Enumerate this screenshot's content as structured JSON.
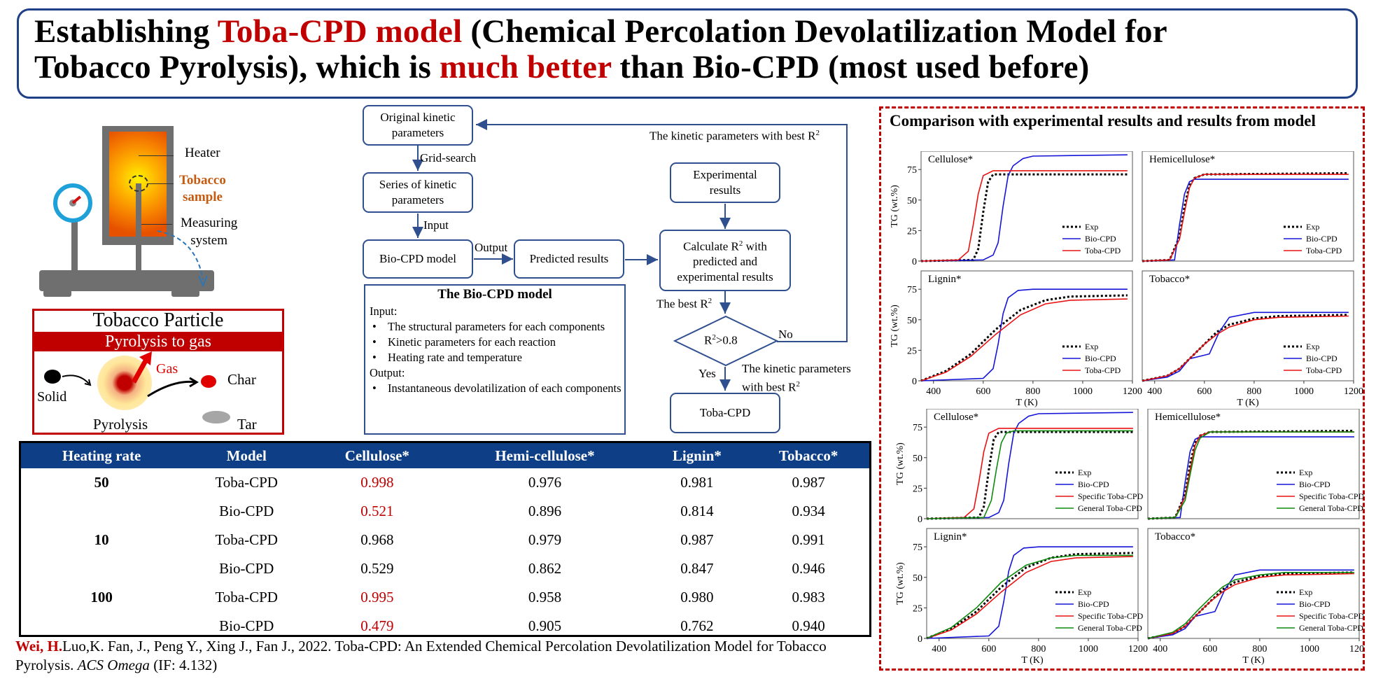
{
  "title": {
    "line1_a": "Establishing ",
    "line1_b": "Toba-CPD model",
    "line1_c": " (Chemical Percolation Devolatilization Model for",
    "line2_a": "Tobacco Pyrolysis), which is ",
    "line2_b": "much better",
    "line2_c": " than Bio-CPD (most used before)"
  },
  "apparatus": {
    "heater": "Heater",
    "sample_line1": "Tobacco",
    "sample_line2": "sample",
    "measuring_line1": "Measuring",
    "measuring_line2": "system"
  },
  "particle": {
    "title": "Tobacco Particle",
    "banner": "Pyrolysis to gas",
    "gas": "Gas",
    "char": "Char",
    "solid": "Solid",
    "pyrolysis": "Pyrolysis",
    "tar": "Tar"
  },
  "flowchart": {
    "original_params_l1": "Original kinetic",
    "original_params_l2": "parameters",
    "grid_search": "Grid-search",
    "series_l1": "Series of kinetic",
    "series_l2": "parameters",
    "input": "Input",
    "bio_cpd_model": "Bio-CPD model",
    "output": "Output",
    "predicted": "Predicted results",
    "experimental_l1": "Experimental",
    "experimental_l2": "results",
    "calc_l1": "Calculate R",
    "calc_l1_suffix": " with",
    "calc_l2": "predicted and",
    "calc_l3": "experimental results",
    "best_r2": "The best R",
    "decision": "R",
    "decision_suffix": ">0.8",
    "no": "No",
    "yes": "Yes",
    "best_params_top": "The kinetic parameters with best R",
    "best_params_l1": "The kinetic parameters",
    "best_params_l2": "with best R",
    "toba_cpd": "Toba-CPD",
    "superscript": "2"
  },
  "bio_cpd_box": {
    "heading": "The Bio-CPD model",
    "input_label": "Input:",
    "input_items": [
      "The structural parameters for each components",
      "Kinetic parameters for each reaction",
      "Heating rate and temperature"
    ],
    "output_label": "Output:",
    "output_items": [
      "Instantaneous devolatilization of each components"
    ]
  },
  "table": {
    "headers": [
      "Heating rate",
      "Model",
      "Cellulose*",
      "Hemi-cellulose*",
      "Lignin*",
      "Tobacco*"
    ],
    "rows": [
      [
        "50",
        "Toba-CPD",
        "0.998",
        "0.976",
        "0.981",
        "0.987"
      ],
      [
        "",
        "Bio-CPD",
        "0.521",
        "0.896",
        "0.814",
        "0.934"
      ],
      [
        "10",
        "Toba-CPD",
        "0.968",
        "0.979",
        "0.987",
        "0.991"
      ],
      [
        "",
        "Bio-CPD",
        "0.529",
        "0.862",
        "0.847",
        "0.946"
      ],
      [
        "100",
        "Toba-CPD",
        "0.995",
        "0.958",
        "0.980",
        "0.983"
      ],
      [
        "",
        "Bio-CPD",
        "0.479",
        "0.905",
        "0.762",
        "0.940"
      ]
    ]
  },
  "reference": {
    "author_bold": "Wei, H.",
    "rest": "Luo,K. Fan, J., Peng Y., Xing J., Fan J., 2022. Toba-CPD: An Extended Chemical Percolation Devolatilization Model for Tobacco Pyrolysis. ",
    "journal": "ACS Omega",
    "impact": " (IF: 4.132)"
  },
  "right_panel": {
    "title": "Comparison with experimental results and results from model"
  },
  "colors": {
    "navy": "#1f3f86",
    "red": "#c00000",
    "table_header": "#0e3f86",
    "bio": "#1515d8",
    "toba": "#e81212",
    "general": "#0f8a0f"
  },
  "chart_data": [
    {
      "type": "line",
      "panel": "top",
      "xlabel": "T (K)",
      "ylabel": "TG (wt.%)",
      "xlim": [
        350,
        1200
      ],
      "ylim": [
        0,
        90
      ],
      "xticks": [
        400,
        600,
        800,
        1000,
        1200
      ],
      "yticks": [
        0,
        25,
        50,
        75
      ],
      "legend": [
        "Exp",
        "Bio-CPD",
        "Toba-CPD"
      ],
      "subplots": [
        {
          "name": "Cellulose*",
          "series": [
            {
              "name": "Exp",
              "x": [
                350,
                560,
                580,
                600,
                620,
                640,
                660,
                1180
              ],
              "y": [
                0,
                1,
                10,
                40,
                65,
                71,
                71,
                71
              ]
            },
            {
              "name": "Bio-CPD",
              "x": [
                350,
                600,
                640,
                660,
                680,
                700,
                720,
                760,
                800,
                1180
              ],
              "y": [
                0,
                1,
                5,
                15,
                45,
                70,
                78,
                84,
                86,
                87
              ]
            },
            {
              "name": "Toba-CPD",
              "x": [
                350,
                500,
                540,
                560,
                580,
                600,
                640,
                1180
              ],
              "y": [
                0,
                1,
                8,
                30,
                55,
                70,
                74,
                74
              ]
            }
          ]
        },
        {
          "name": "Hemicellulose*",
          "series": [
            {
              "name": "Exp",
              "x": [
                350,
                460,
                500,
                520,
                540,
                560,
                600,
                1180
              ],
              "y": [
                0,
                1,
                20,
                45,
                62,
                68,
                71,
                72
              ]
            },
            {
              "name": "Bio-CPD",
              "x": [
                350,
                480,
                500,
                520,
                540,
                560,
                600,
                1180
              ],
              "y": [
                0,
                1,
                30,
                55,
                65,
                67,
                67,
                67
              ]
            },
            {
              "name": "Toba-CPD",
              "x": [
                350,
                460,
                500,
                520,
                540,
                560,
                600,
                1180
              ],
              "y": [
                0,
                1,
                18,
                40,
                60,
                68,
                71,
                71
              ]
            }
          ]
        },
        {
          "name": "Lignin*",
          "series": [
            {
              "name": "Exp",
              "x": [
                350,
                450,
                550,
                650,
                750,
                850,
                950,
                1180
              ],
              "y": [
                0,
                8,
                22,
                42,
                58,
                66,
                69,
                70
              ]
            },
            {
              "name": "Bio-CPD",
              "x": [
                350,
                600,
                640,
                660,
                680,
                700,
                740,
                800,
                1180
              ],
              "y": [
                0,
                2,
                10,
                30,
                55,
                68,
                74,
                75,
                75
              ]
            },
            {
              "name": "Toba-CPD",
              "x": [
                350,
                450,
                550,
                650,
                750,
                850,
                950,
                1180
              ],
              "y": [
                0,
                7,
                20,
                38,
                54,
                63,
                66,
                67
              ]
            }
          ]
        },
        {
          "name": "Tobacco*",
          "series": [
            {
              "name": "Exp",
              "x": [
                350,
                450,
                500,
                550,
                600,
                650,
                700,
                800,
                900,
                1180
              ],
              "y": [
                0,
                4,
                10,
                20,
                30,
                40,
                46,
                51,
                53,
                54
              ]
            },
            {
              "name": "Bio-CPD",
              "x": [
                350,
                450,
                500,
                540,
                580,
                620,
                660,
                700,
                800,
                1180
              ],
              "y": [
                0,
                3,
                8,
                18,
                20,
                22,
                40,
                52,
                56,
                56
              ]
            },
            {
              "name": "Toba-CPD",
              "x": [
                350,
                450,
                500,
                550,
                600,
                650,
                700,
                800,
                900,
                1180
              ],
              "y": [
                0,
                4,
                10,
                20,
                30,
                38,
                44,
                50,
                52,
                53
              ]
            }
          ]
        }
      ]
    },
    {
      "type": "line",
      "panel": "bottom",
      "xlabel": "T (K)",
      "ylabel": "TG (wt.%)",
      "xlim": [
        350,
        1200
      ],
      "ylim": [
        0,
        90
      ],
      "xticks": [
        400,
        600,
        800,
        1000,
        1200
      ],
      "yticks": [
        0,
        25,
        50,
        75
      ],
      "legend": [
        "Exp",
        "Bio-CPD",
        "Specific Toba-CPD",
        "General Toba-CPD"
      ],
      "subplots": [
        {
          "name": "Cellulose*",
          "series": [
            {
              "name": "Exp",
              "x": [
                350,
                560,
                580,
                600,
                620,
                640,
                660,
                1180
              ],
              "y": [
                0,
                1,
                10,
                40,
                65,
                71,
                71,
                71
              ]
            },
            {
              "name": "Bio-CPD",
              "x": [
                350,
                600,
                640,
                660,
                680,
                700,
                720,
                760,
                800,
                1180
              ],
              "y": [
                0,
                1,
                5,
                15,
                45,
                70,
                78,
                84,
                86,
                87
              ]
            },
            {
              "name": "Specific Toba-CPD",
              "x": [
                350,
                500,
                540,
                560,
                580,
                600,
                640,
                1180
              ],
              "y": [
                0,
                1,
                8,
                30,
                55,
                70,
                74,
                74
              ]
            },
            {
              "name": "General Toba-CPD",
              "x": [
                350,
                580,
                610,
                630,
                650,
                670,
                700,
                1180
              ],
              "y": [
                0,
                1,
                15,
                40,
                62,
                70,
                72,
                72
              ]
            }
          ]
        },
        {
          "name": "Hemicellulose*",
          "series": [
            {
              "name": "Exp",
              "x": [
                350,
                460,
                500,
                520,
                540,
                560,
                600,
                1180
              ],
              "y": [
                0,
                1,
                20,
                45,
                62,
                68,
                71,
                72
              ]
            },
            {
              "name": "Bio-CPD",
              "x": [
                350,
                480,
                500,
                520,
                540,
                560,
                600,
                1180
              ],
              "y": [
                0,
                1,
                30,
                55,
                65,
                67,
                67,
                67
              ]
            },
            {
              "name": "Specific Toba-CPD",
              "x": [
                350,
                460,
                500,
                520,
                540,
                560,
                600,
                1180
              ],
              "y": [
                0,
                1,
                18,
                40,
                60,
                68,
                71,
                71
              ]
            },
            {
              "name": "General Toba-CPD",
              "x": [
                350,
                460,
                500,
                520,
                540,
                560,
                600,
                1180
              ],
              "y": [
                0,
                1,
                15,
                36,
                56,
                66,
                71,
                71
              ]
            }
          ]
        },
        {
          "name": "Lignin*",
          "series": [
            {
              "name": "Exp",
              "x": [
                350,
                450,
                550,
                650,
                750,
                850,
                950,
                1180
              ],
              "y": [
                0,
                8,
                22,
                42,
                58,
                66,
                69,
                70
              ]
            },
            {
              "name": "Bio-CPD",
              "x": [
                350,
                600,
                640,
                660,
                680,
                700,
                740,
                800,
                1180
              ],
              "y": [
                0,
                2,
                10,
                30,
                55,
                68,
                74,
                75,
                75
              ]
            },
            {
              "name": "Specific Toba-CPD",
              "x": [
                350,
                450,
                550,
                650,
                750,
                850,
                950,
                1180
              ],
              "y": [
                0,
                7,
                20,
                38,
                54,
                63,
                66,
                67
              ]
            },
            {
              "name": "General Toba-CPD",
              "x": [
                350,
                450,
                550,
                650,
                750,
                850,
                950,
                1180
              ],
              "y": [
                0,
                9,
                25,
                46,
                60,
                66,
                68,
                68
              ]
            }
          ]
        },
        {
          "name": "Tobacco*",
          "series": [
            {
              "name": "Exp",
              "x": [
                350,
                450,
                500,
                550,
                600,
                650,
                700,
                800,
                900,
                1180
              ],
              "y": [
                0,
                4,
                10,
                20,
                30,
                40,
                46,
                51,
                53,
                54
              ]
            },
            {
              "name": "Bio-CPD",
              "x": [
                350,
                450,
                500,
                540,
                580,
                620,
                660,
                700,
                800,
                1180
              ],
              "y": [
                0,
                3,
                8,
                18,
                20,
                22,
                40,
                52,
                56,
                56
              ]
            },
            {
              "name": "Specific Toba-CPD",
              "x": [
                350,
                450,
                500,
                550,
                600,
                650,
                700,
                800,
                900,
                1180
              ],
              "y": [
                0,
                4,
                10,
                20,
                30,
                38,
                44,
                50,
                52,
                53
              ]
            },
            {
              "name": "General Toba-CPD",
              "x": [
                350,
                450,
                500,
                550,
                600,
                650,
                700,
                800,
                900,
                1180
              ],
              "y": [
                0,
                5,
                12,
                23,
                33,
                42,
                48,
                52,
                54,
                54
              ]
            }
          ]
        }
      ]
    }
  ]
}
